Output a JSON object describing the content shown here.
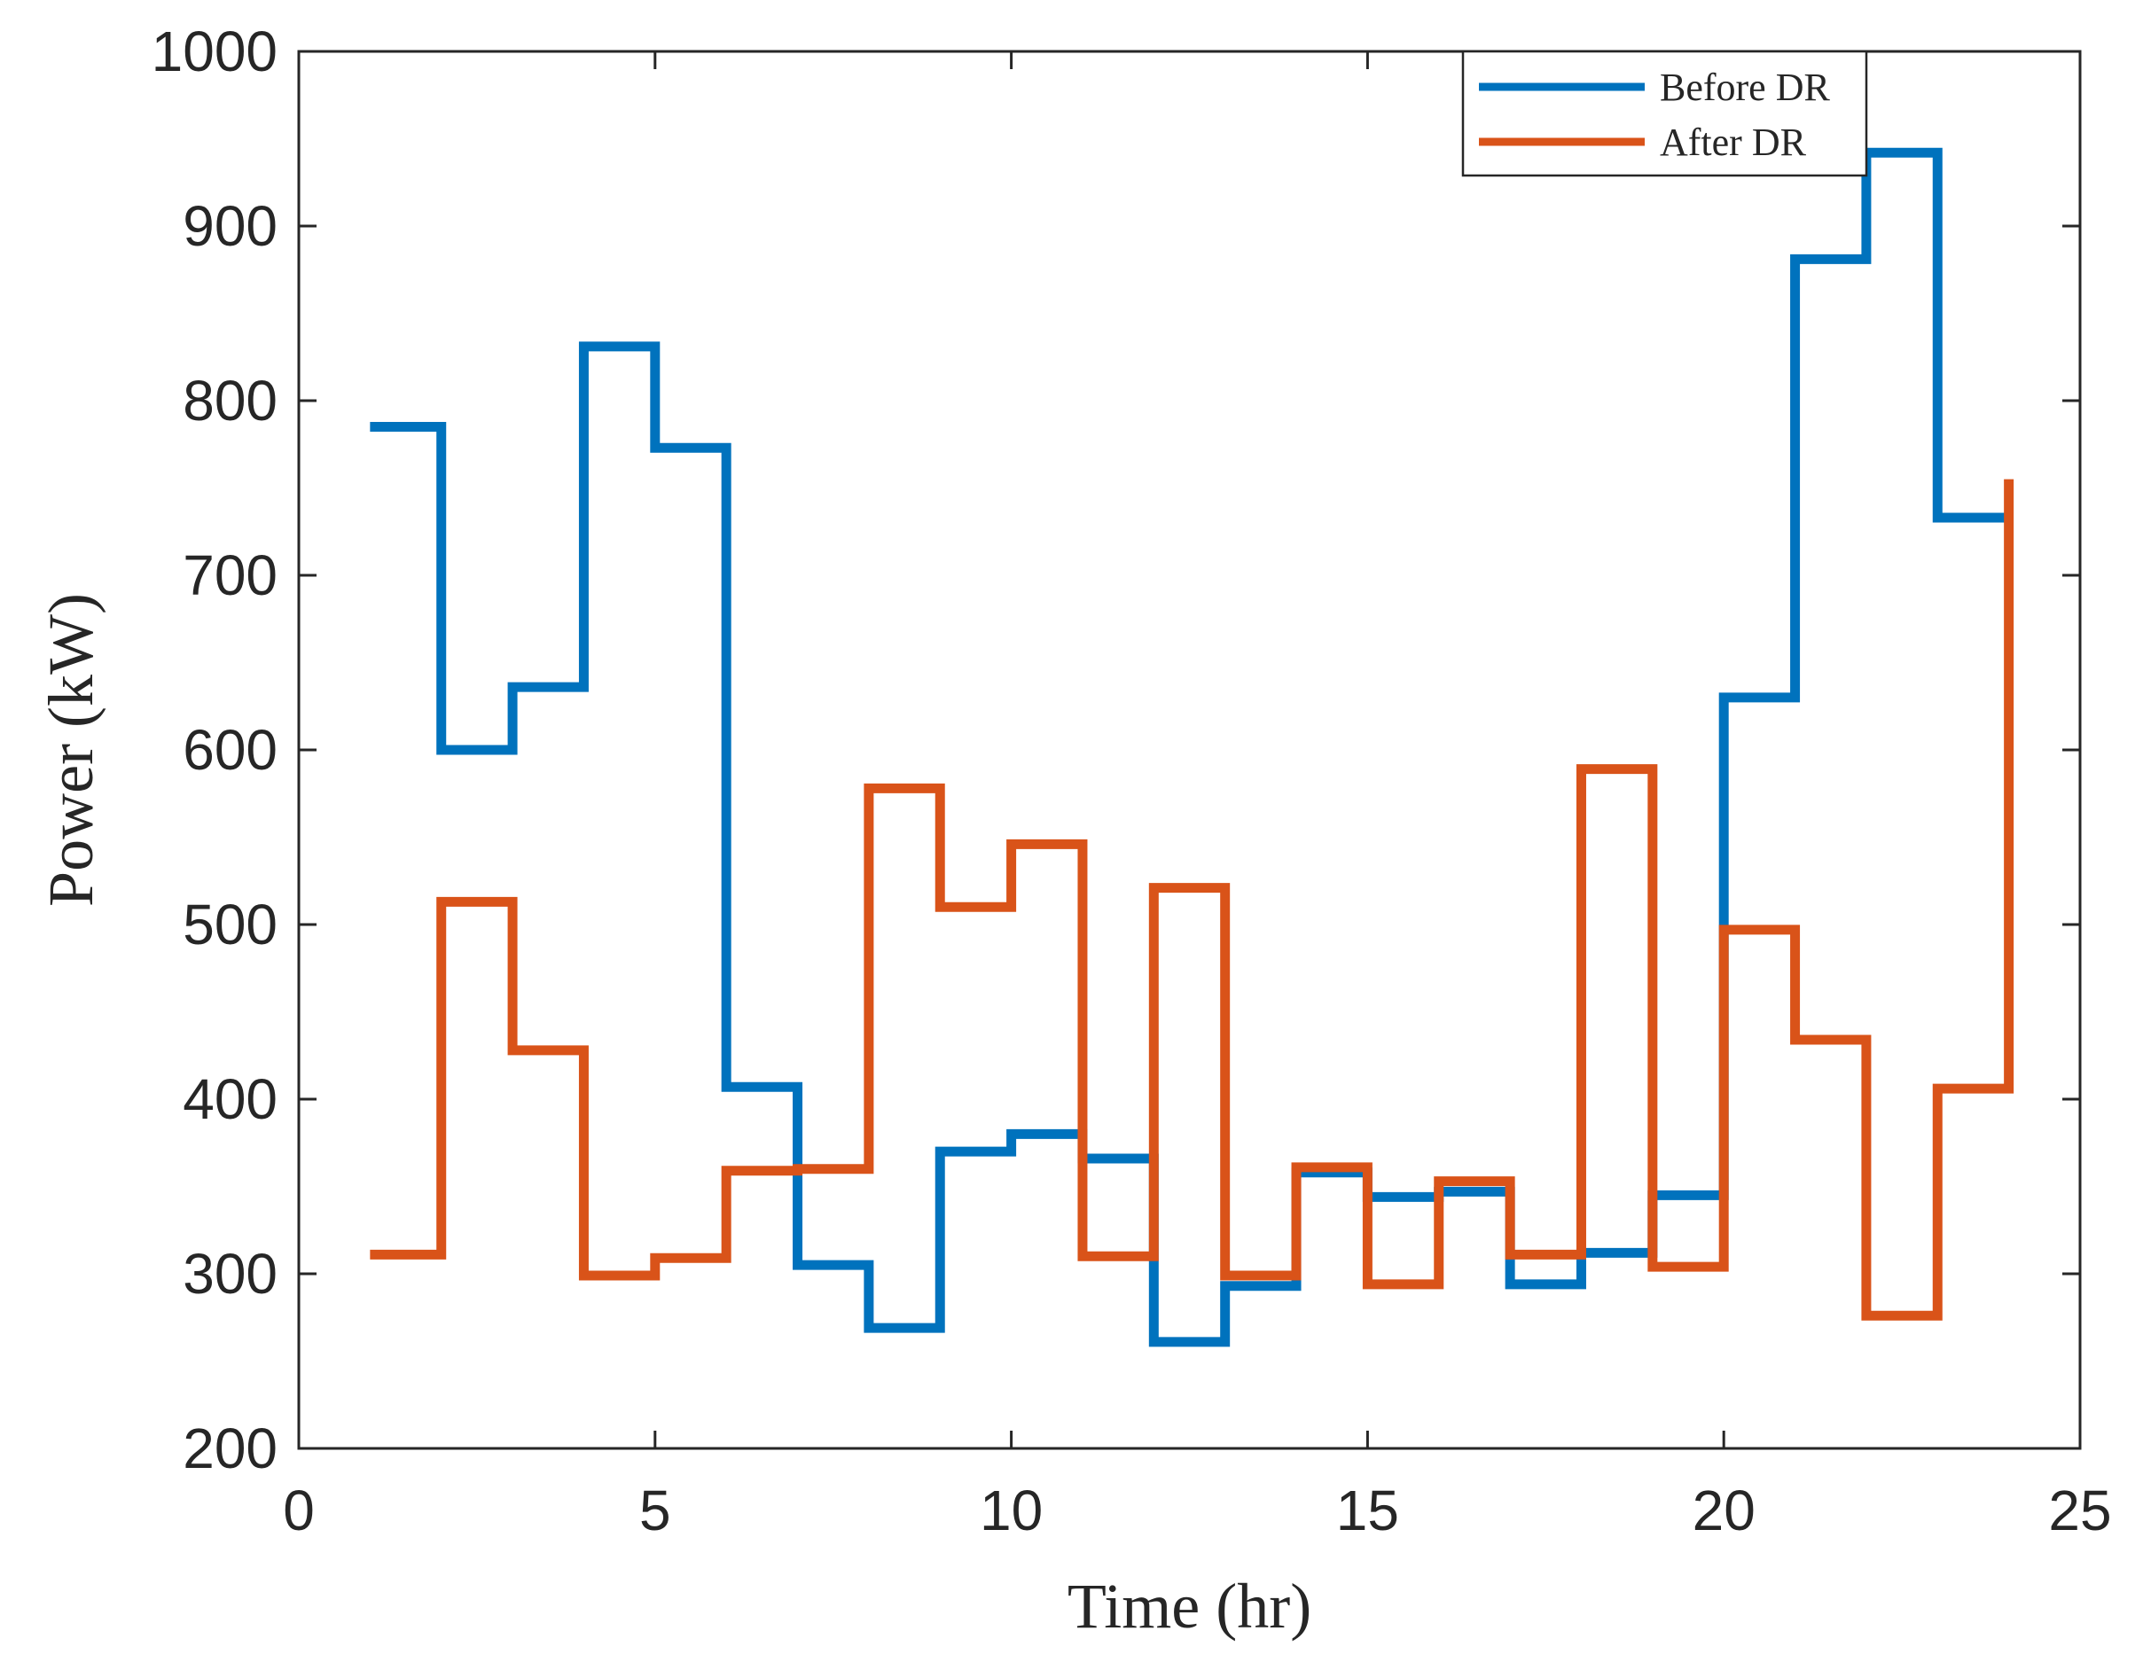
{
  "chart_data": {
    "type": "line",
    "style": "stairs",
    "xlabel": "Time (hr)",
    "ylabel": "Power (kW)",
    "xlim": [
      0,
      25
    ],
    "ylim": [
      200,
      1000
    ],
    "xticks": [
      0,
      5,
      10,
      15,
      20,
      25
    ],
    "yticks": [
      200,
      300,
      400,
      500,
      600,
      700,
      800,
      900,
      1000
    ],
    "grid": false,
    "legend_position": "top-right",
    "x": [
      1,
      2,
      3,
      4,
      5,
      6,
      7,
      8,
      9,
      10,
      11,
      12,
      13,
      14,
      15,
      16,
      17,
      18,
      19,
      20,
      21,
      22,
      23,
      24
    ],
    "series": [
      {
        "name": "Before DR",
        "color": "#0072BD",
        "values": [
          785,
          600,
          636,
          831,
          773,
          407,
          305,
          269,
          370,
          380,
          366,
          261,
          293,
          358,
          344,
          347,
          294,
          312,
          345,
          630,
          881,
          942,
          733,
          733
        ]
      },
      {
        "name": "After DR",
        "color": "#D95319",
        "values": [
          311,
          513,
          428,
          299,
          309,
          359,
          360,
          578,
          510,
          546,
          310,
          521,
          299,
          361,
          294,
          353,
          311,
          589,
          304,
          497,
          434,
          276,
          406,
          755
        ]
      }
    ]
  }
}
